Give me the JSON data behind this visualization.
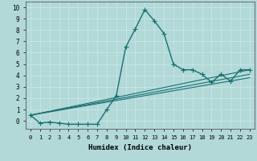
{
  "xlabel": "Humidex (Indice chaleur)",
  "background_color": "#b2d8d8",
  "grid_color": "#c5e8e8",
  "line_color": "#1a7070",
  "xlim": [
    -0.5,
    23.5
  ],
  "ylim": [
    -0.7,
    10.5
  ],
  "main_curve": {
    "x": [
      0,
      1,
      2,
      3,
      4,
      5,
      6,
      7,
      8,
      9,
      10,
      11,
      12,
      13,
      14,
      15,
      16,
      17,
      18,
      19,
      20,
      21,
      22,
      23
    ],
    "y": [
      0.5,
      -0.2,
      -0.1,
      -0.2,
      -0.3,
      -0.3,
      -0.3,
      -0.3,
      1.0,
      2.2,
      6.5,
      8.1,
      9.8,
      8.8,
      7.7,
      5.0,
      4.5,
      4.5,
      4.1,
      3.4,
      4.1,
      3.5,
      4.5,
      4.5
    ]
  },
  "trend_lines": [
    {
      "x": [
        0,
        23
      ],
      "y": [
        0.5,
        4.5
      ]
    },
    {
      "x": [
        0,
        23
      ],
      "y": [
        0.5,
        4.1
      ]
    },
    {
      "x": [
        0,
        23
      ],
      "y": [
        0.5,
        3.8
      ]
    }
  ],
  "xtick_labels": [
    "0",
    "1",
    "2",
    "3",
    "4",
    "5",
    "6",
    "7",
    "8",
    "9",
    "10",
    "11",
    "12",
    "13",
    "14",
    "15",
    "16",
    "17",
    "18",
    "19",
    "20",
    "21",
    "22",
    "23"
  ]
}
